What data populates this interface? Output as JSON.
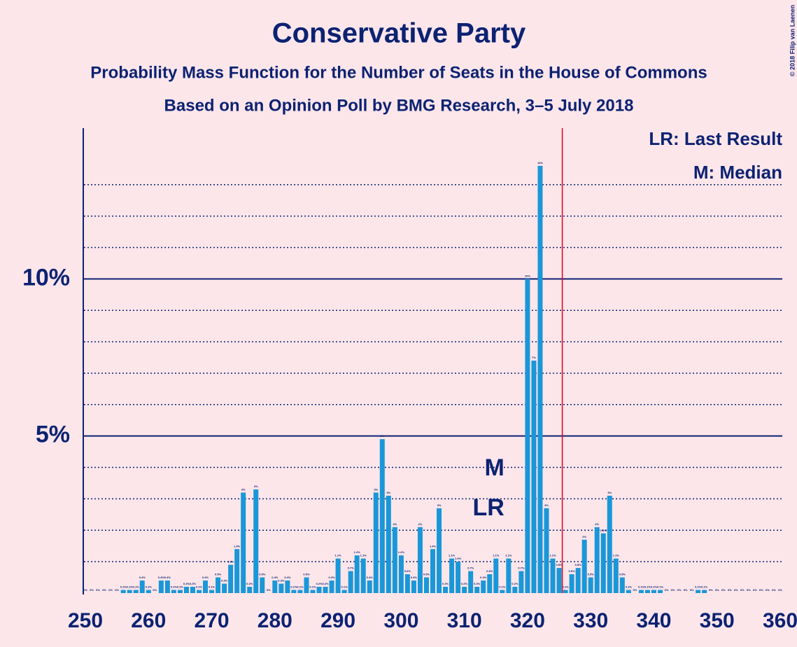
{
  "chart_data": {
    "type": "bar",
    "title": "Conservative Party",
    "subtitles": [
      "Probability Mass Function for the Number of Seats in the House of Commons",
      "Based on an Opinion Poll by BMG Research, 3–5 July 2018"
    ],
    "copyright": "© 2018 Filip van Laenen",
    "legend_texts": [
      "LR: Last Result",
      "M: Median"
    ],
    "markers": [
      {
        "label": "M",
        "x": 317
      },
      {
        "label": "LR",
        "x": 317
      }
    ],
    "vline": {
      "x": 325.5,
      "color": "#e0001b"
    },
    "color": "#1a97d8",
    "x": [
      250,
      251,
      252,
      253,
      254,
      255,
      256,
      257,
      258,
      259,
      260,
      261,
      262,
      263,
      264,
      265,
      266,
      267,
      268,
      269,
      270,
      271,
      272,
      273,
      274,
      275,
      276,
      277,
      278,
      279,
      280,
      281,
      282,
      283,
      284,
      285,
      286,
      287,
      288,
      289,
      290,
      291,
      292,
      293,
      294,
      295,
      296,
      297,
      298,
      299,
      300,
      301,
      302,
      303,
      304,
      305,
      306,
      307,
      308,
      309,
      310,
      311,
      312,
      313,
      314,
      315,
      316,
      317,
      318,
      319,
      320,
      321,
      322,
      323,
      324,
      325,
      326,
      327,
      328,
      329,
      330,
      331,
      332,
      333,
      334,
      335,
      336,
      337,
      338,
      339,
      340,
      341,
      342,
      343,
      344,
      345,
      346,
      347,
      348,
      349,
      350,
      351,
      352,
      353,
      354,
      355,
      356,
      357,
      358,
      359,
      360
    ],
    "values": [
      0,
      0,
      0,
      0,
      0,
      0,
      0.1,
      0.1,
      0.1,
      0.4,
      0.1,
      0,
      0.4,
      0.4,
      0.1,
      0.1,
      0.2,
      0.2,
      0.1,
      0.4,
      0.1,
      0.5,
      0.3,
      0.9,
      1.4,
      3.2,
      0.2,
      3.3,
      0.5,
      0,
      0.4,
      0.3,
      0.4,
      0.1,
      0.1,
      0.5,
      0.1,
      0.2,
      0.2,
      0.4,
      1.1,
      0.1,
      0.7,
      1.2,
      1.1,
      0.4,
      3.2,
      4.9,
      3.1,
      2.1,
      1.2,
      0.6,
      0.4,
      2.1,
      0.5,
      1.4,
      2.7,
      0.2,
      1.1,
      1.0,
      0.2,
      0.7,
      0.2,
      0.4,
      0.6,
      1.1,
      0.1,
      1.1,
      0.2,
      0.7,
      10.0,
      7.4,
      13.6,
      2.7,
      1.1,
      0.8,
      0.1,
      0.6,
      0.8,
      1.7,
      0.5,
      2.1,
      1.9,
      3.1,
      1.1,
      0.5,
      0.1,
      0,
      0.1,
      0.1,
      0.1,
      0.1,
      0,
      0,
      0,
      0,
      0,
      0.1,
      0.1,
      0,
      0,
      0,
      0,
      0,
      0,
      0,
      0,
      0,
      0,
      0,
      0
    ],
    "value_labels": [
      "0%",
      "0%",
      "0%",
      "0%",
      "0%",
      "0%",
      "0.1%",
      "0.1%",
      "0.1%",
      "0.4%",
      "0.1%",
      "0%",
      "0.4%",
      "0.4%",
      "0.1%",
      "0.1%",
      "0.2%",
      "0.2%",
      "0.1%",
      "0.4%",
      "0.1%",
      "0.5%",
      "0.3%",
      "0.9%",
      "1.4%",
      "3%",
      "0.2%",
      "3%",
      "0.5%",
      "0%",
      "0.4%",
      "0.3%",
      "0.4%",
      "0.1%",
      "0.1%",
      "0.5%",
      "0.1%",
      "0.2%",
      "0.2%",
      "0.4%",
      "1.1%",
      "0.1%",
      "0.7%",
      "1.2%",
      "1.1%",
      "0.4%",
      "3%",
      "5%",
      "3%",
      "2%",
      "1.2%",
      "0.6%",
      "0.4%",
      "2%",
      "0.5%",
      "1.4%",
      "3%",
      "0.2%",
      "1.1%",
      "1.0%",
      "0.2%",
      "0.7%",
      "0.2%",
      "0.4%",
      "0.6%",
      "1.1%",
      "0.1%",
      "1.1%",
      "0.2%",
      "0.7%",
      "10%",
      "7%",
      "14%",
      "3%",
      "1.1%",
      "0.8%",
      "0.1%",
      "0.6%",
      "0.8%",
      "2%",
      "0.5%",
      "2%",
      "1.9%",
      "3%",
      "1.1%",
      "0.5%",
      "0.1%",
      "0%",
      "0.1%",
      "0.1%",
      "0.1%",
      "0.1%",
      "0%",
      "0%",
      "0%",
      "0%",
      "0%",
      "0.1%",
      "0.1%",
      "0%",
      "0%",
      "0%",
      "0%",
      "0%",
      "0%",
      "0%",
      "0%",
      "0%",
      "0%",
      "0%",
      "0%"
    ],
    "xlim": [
      249.5,
      360.5
    ],
    "xticks": [
      250,
      260,
      270,
      280,
      290,
      300,
      310,
      320,
      330,
      340,
      350,
      360
    ],
    "ylim": [
      0,
      14.8
    ],
    "yticks": [
      {
        "value": 5,
        "label": "5%"
      },
      {
        "value": 10,
        "label": "10%"
      }
    ],
    "yticks_minor": [
      1,
      2,
      3,
      4,
      6,
      7,
      8,
      9,
      11,
      12,
      13
    ],
    "grid": true
  }
}
